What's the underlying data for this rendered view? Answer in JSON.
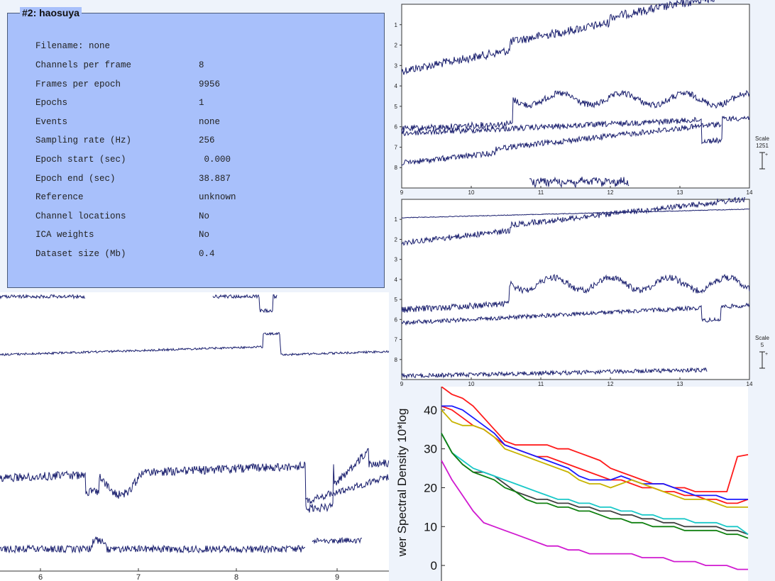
{
  "info": {
    "title": "#2: haosuya",
    "filename_line": "Filename: none",
    "rows": [
      {
        "label": "Channels per frame",
        "value": "8"
      },
      {
        "label": "Frames per epoch",
        "value": "9956"
      },
      {
        "label": "Epochs",
        "value": "1"
      },
      {
        "label": "Events",
        "value": "none"
      },
      {
        "label": "Sampling rate (Hz)",
        "value": "256"
      },
      {
        "label": "Epoch start (sec)",
        "value": " 0.000"
      },
      {
        "label": "Epoch end (sec)",
        "value": "38.887"
      },
      {
        "label": "Reference",
        "value": "unknown"
      },
      {
        "label": "Channel locations",
        "value": "No"
      },
      {
        "label": "ICA weights",
        "value": "No"
      },
      {
        "label": "Dataset size (Mb)",
        "value": "0.4"
      }
    ]
  },
  "eeg_top": {
    "channel_labels": [
      "1",
      "2",
      "3",
      "4",
      "5",
      "6",
      "7",
      "8"
    ],
    "time_ticks": [
      "9",
      "10",
      "11",
      "12",
      "13",
      "14"
    ],
    "scale_label": "Scale",
    "scale_value": "1251",
    "plus": "+"
  },
  "eeg_mid": {
    "channel_labels": [
      "1",
      "2",
      "3",
      "4",
      "5",
      "6",
      "7",
      "8"
    ],
    "time_ticks": [
      "9",
      "10",
      "11",
      "12",
      "13",
      "14"
    ],
    "scale_label": "Scale",
    "scale_value": "5",
    "plus": "+"
  },
  "eeg_left": {
    "time_ticks": [
      "6",
      "7",
      "8",
      "9"
    ]
  },
  "chart_data": {
    "type": "line",
    "ylabel": "wer Spectral Density 10*log",
    "y_ticks": [
      "0",
      "10",
      "20",
      "30",
      "40"
    ],
    "ylim": [
      -4,
      46
    ],
    "x": [
      0,
      1,
      2,
      3,
      4,
      5,
      6,
      7,
      8,
      9,
      10,
      11,
      12,
      13,
      14,
      15,
      16,
      17,
      18,
      19,
      20,
      21,
      22,
      23,
      24,
      25,
      26,
      27,
      28,
      29
    ],
    "series": [
      {
        "color": "#ff1a1a",
        "values": [
          46,
          44,
          43,
          41,
          38,
          35,
          32,
          31,
          31,
          31,
          31,
          30,
          30,
          29,
          28,
          27,
          25,
          24,
          23,
          22,
          21,
          21,
          20,
          20,
          19,
          19,
          19,
          19,
          28,
          28.5
        ]
      },
      {
        "color": "#ff1a1a",
        "values": [
          41,
          40,
          38,
          36,
          35,
          33,
          31,
          30,
          29,
          28,
          28,
          27,
          26,
          25,
          24,
          23,
          22,
          22,
          21,
          20,
          20,
          19,
          19,
          18,
          18,
          17,
          17,
          16,
          16,
          17
        ]
      },
      {
        "color": "#1a1aff",
        "values": [
          41,
          41,
          40,
          38,
          36,
          34,
          31,
          30,
          29,
          28,
          27,
          26,
          25,
          23,
          22,
          22,
          22,
          23,
          22,
          21,
          21,
          21,
          20,
          19,
          18,
          18,
          18,
          17,
          17,
          17
        ]
      },
      {
        "color": "#c8b400",
        "values": [
          40,
          37,
          36,
          36,
          35,
          33,
          30,
          29,
          28,
          27,
          26,
          25,
          24,
          22,
          21,
          21,
          20,
          21,
          22,
          21,
          20,
          19,
          18,
          17,
          17,
          17,
          16,
          15,
          15,
          15
        ]
      },
      {
        "color": "#404040",
        "values": [
          34,
          29,
          26,
          24,
          24,
          23,
          21,
          19,
          18,
          17,
          17,
          16,
          16,
          15,
          15,
          14,
          14,
          13,
          13,
          12,
          12,
          11,
          11,
          10,
          10,
          10,
          10,
          9,
          9,
          8
        ]
      },
      {
        "color": "#1ac8c8",
        "values": [
          34,
          29,
          27,
          25,
          24,
          23,
          22,
          21,
          20,
          19,
          18,
          17,
          17,
          16,
          16,
          15,
          15,
          14,
          14,
          13,
          13,
          12,
          12,
          12,
          11,
          11,
          11,
          10,
          10,
          8
        ]
      },
      {
        "color": "#108010",
        "values": [
          34,
          29,
          26,
          24,
          23,
          22,
          20,
          19,
          17,
          16,
          16,
          15,
          15,
          14,
          14,
          13,
          12,
          12,
          11,
          11,
          10,
          10,
          10,
          9,
          9,
          9,
          9,
          8,
          8,
          7
        ]
      },
      {
        "color": "#d01ad0",
        "values": [
          27,
          22,
          18,
          14,
          11,
          10,
          9,
          8,
          7,
          6,
          5,
          5,
          4,
          4,
          3,
          3,
          3,
          3,
          3,
          2,
          2,
          2,
          1,
          1,
          1,
          0,
          0,
          0,
          -1,
          -1
        ]
      }
    ]
  }
}
